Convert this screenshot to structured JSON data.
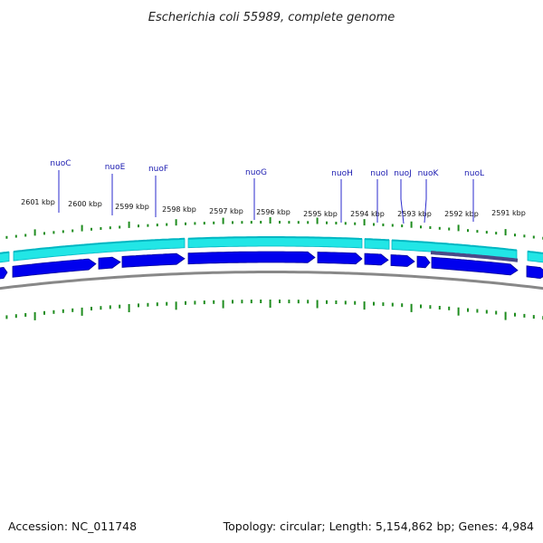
{
  "title": "Escherichia coli 55989, complete genome",
  "footer": {
    "accession": "Accession: NC_011748",
    "summary": "Topology: circular; Length: 5,154,862 bp; Genes: 4,984"
  },
  "colors": {
    "cds_fill": "#0000ee",
    "cds_stroke": "#00009a",
    "gene_band": "#22e6e6",
    "gene_band_dark": "#00b6c2",
    "backbone": "#888888",
    "tick": "#1e8c1e",
    "gene_label": "#1a1ab0",
    "leader": "#2a2acc",
    "highlight": "#4a4a88"
  },
  "ticks": [
    {
      "label": "2601 kbp"
    },
    {
      "label": "2600 kbp"
    },
    {
      "label": "2599 kbp"
    },
    {
      "label": "2598 kbp"
    },
    {
      "label": "2597 kbp"
    },
    {
      "label": "2596 kbp"
    },
    {
      "label": "2595 kbp"
    },
    {
      "label": "2594 kbp"
    },
    {
      "label": "2593 kbp"
    },
    {
      "label": "2592 kbp"
    },
    {
      "label": "2591 kbp"
    }
  ],
  "genes": [
    {
      "name": "nuoC"
    },
    {
      "name": "nuoE"
    },
    {
      "name": "nuoF"
    },
    {
      "name": "nuoG"
    },
    {
      "name": "nuoH"
    },
    {
      "name": "nuoI"
    },
    {
      "name": "nuoJ"
    },
    {
      "name": "nuoK"
    },
    {
      "name": "nuoL"
    }
  ]
}
